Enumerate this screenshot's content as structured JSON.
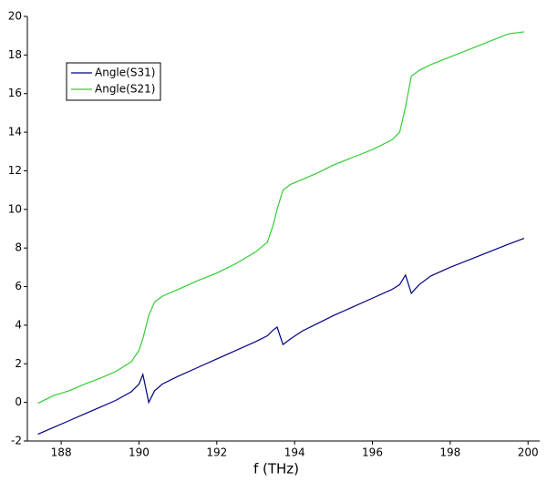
{
  "chart_data": {
    "type": "line",
    "xlabel": "f (THz)",
    "x": [
      187.4,
      187.8,
      188.2,
      188.6,
      189.0,
      189.4,
      189.8,
      190.0,
      190.1,
      190.25,
      190.4,
      190.6,
      191.0,
      191.5,
      192.0,
      192.5,
      193.0,
      193.3,
      193.45,
      193.55,
      193.7,
      193.9,
      194.2,
      194.6,
      195.0,
      195.5,
      196.0,
      196.5,
      196.7,
      196.85,
      197.0,
      197.2,
      197.5,
      198.0,
      198.5,
      199.0,
      199.5,
      199.9
    ],
    "series": [
      {
        "name": "Angle(S31)",
        "color": "#000080",
        "values": [
          -1.65,
          -1.3,
          -0.95,
          -0.6,
          -0.25,
          0.1,
          0.55,
          0.95,
          1.45,
          0.0,
          0.6,
          0.95,
          1.35,
          1.8,
          2.25,
          2.7,
          3.15,
          3.45,
          3.75,
          3.9,
          3.0,
          3.3,
          3.7,
          4.1,
          4.5,
          4.95,
          5.4,
          5.85,
          6.1,
          6.6,
          5.65,
          6.1,
          6.55,
          7.0,
          7.4,
          7.8,
          8.2,
          8.5
        ]
      },
      {
        "name": "Angle(S21)",
        "color": "#33cc33",
        "values": [
          -0.05,
          0.35,
          0.6,
          0.95,
          1.25,
          1.6,
          2.1,
          2.7,
          3.3,
          4.5,
          5.2,
          5.5,
          5.85,
          6.3,
          6.7,
          7.2,
          7.8,
          8.3,
          9.2,
          10.0,
          11.0,
          11.3,
          11.55,
          11.9,
          12.3,
          12.7,
          13.1,
          13.6,
          14.0,
          15.3,
          16.9,
          17.2,
          17.5,
          17.9,
          18.3,
          18.7,
          19.1,
          19.2
        ]
      }
    ],
    "xlim": [
      187.13,
      200.3
    ],
    "ylim": [
      -2,
      20
    ],
    "xticks": [
      188,
      190,
      192,
      194,
      196,
      198,
      200
    ],
    "yticks": [
      -2,
      0,
      2,
      4,
      6,
      8,
      10,
      12,
      14,
      16,
      18,
      20
    ],
    "legend": "upper left"
  }
}
